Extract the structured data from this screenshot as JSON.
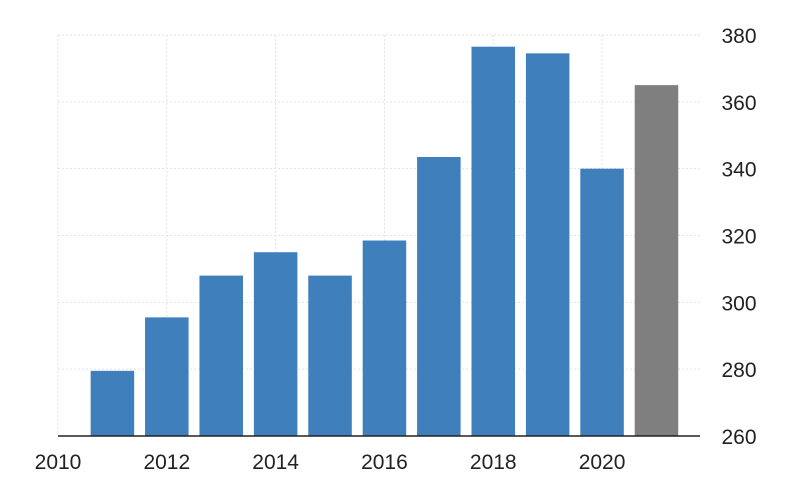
{
  "chart_data": {
    "type": "bar",
    "x": [
      2011,
      2012,
      2013,
      2014,
      2015,
      2016,
      2017,
      2018,
      2019,
      2020,
      2021
    ],
    "values": [
      279.5,
      295.5,
      308,
      315,
      308,
      318.5,
      343.5,
      376.5,
      374.5,
      340,
      365
    ],
    "ylim": [
      260,
      380
    ],
    "xlim": [
      2010,
      2021.8
    ],
    "yticks": [
      260,
      280,
      300,
      320,
      340,
      360,
      380
    ],
    "xticks": [
      2010,
      2012,
      2014,
      2016,
      2018,
      2020
    ],
    "y_axis_position": "right",
    "grid": true,
    "colors": {
      "bar": "#3f7fbb",
      "bar_forecast": "#7f7f7f",
      "grid": "#dfe3e8",
      "axis": "#222222"
    },
    "forecast_from": 2021
  }
}
